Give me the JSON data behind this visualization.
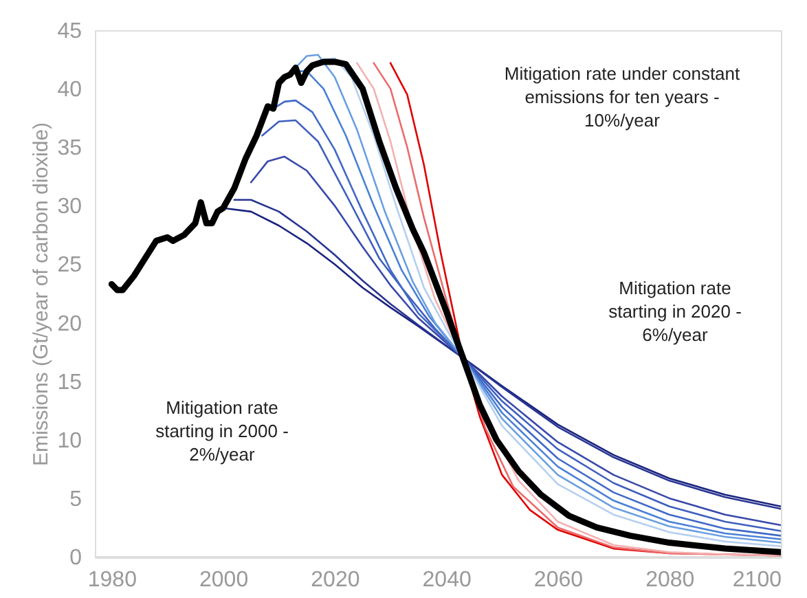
{
  "chart_data": {
    "type": "line",
    "ylabel": "Emissions (Gt/year of carbon dioxide)",
    "xlim": [
      1977,
      2100
    ],
    "ylim": [
      0,
      45
    ],
    "xticks": [
      1980,
      2000,
      2020,
      2040,
      2060,
      2080,
      2100
    ],
    "yticks": [
      0,
      5,
      10,
      15,
      20,
      25,
      30,
      35,
      40,
      45
    ],
    "grid": false,
    "series": [
      {
        "color": "#e00000",
        "x": [
          2030,
          2033,
          2036,
          2039,
          2041,
          2043,
          2046,
          2050,
          2055,
          2060,
          2070,
          2080,
          2100
        ],
        "values": [
          42.2,
          39.5,
          33.5,
          26,
          21.5,
          17,
          12,
          7,
          4,
          2.3,
          0.7,
          0.3,
          0.1
        ]
      },
      {
        "color": "#ec6b6b",
        "x": [
          2027,
          2030,
          2033,
          2036,
          2040,
          2043,
          2047,
          2052,
          2060,
          2070,
          2080,
          2090,
          2100
        ],
        "values": [
          42.2,
          40,
          35,
          29,
          22,
          17,
          11,
          6,
          2.5,
          0.8,
          0.3,
          0.2,
          0.1
        ]
      },
      {
        "color": "#f4b0b0",
        "x": [
          2024,
          2027,
          2030,
          2034,
          2038,
          2043,
          2048,
          2053,
          2060,
          2070,
          2080,
          2090,
          2100
        ],
        "values": [
          42.2,
          40,
          35.5,
          28,
          22,
          17,
          11,
          6.5,
          3,
          1,
          0.4,
          0.2,
          0.1
        ]
      },
      {
        "color": "#1a237e",
        "x": [
          2000,
          2005,
          2010,
          2015,
          2020,
          2025,
          2030,
          2035,
          2043,
          2050,
          2060,
          2070,
          2080,
          2090,
          2100
        ],
        "values": [
          29.8,
          29.5,
          28.3,
          26.8,
          25,
          23,
          21.3,
          19.7,
          17,
          14.6,
          11.3,
          8.7,
          6.7,
          5.3,
          4.3
        ]
      },
      {
        "color": "#283593",
        "x": [
          2002,
          2005,
          2010,
          2015,
          2020,
          2025,
          2030,
          2035,
          2043,
          2050,
          2060,
          2070,
          2080,
          2090,
          2100
        ],
        "values": [
          30.5,
          30.5,
          29.5,
          27.8,
          25.8,
          23.6,
          21.6,
          19.8,
          17,
          14.5,
          11.1,
          8.5,
          6.5,
          5.1,
          4.1
        ]
      },
      {
        "color": "#3949ab",
        "x": [
          2005,
          2008,
          2011,
          2015,
          2020,
          2025,
          2030,
          2035,
          2043,
          2050,
          2060,
          2070,
          2080,
          2090,
          2100
        ],
        "values": [
          32,
          33.8,
          34.2,
          33,
          30,
          26.5,
          23.2,
          20.4,
          17,
          13.7,
          9.8,
          7,
          5,
          3.6,
          2.7
        ]
      },
      {
        "color": "#3f5fbf",
        "x": [
          2007,
          2010,
          2013,
          2017,
          2022,
          2028,
          2032,
          2038,
          2043,
          2050,
          2060,
          2070,
          2080,
          2090,
          2100
        ],
        "values": [
          36,
          37.2,
          37.3,
          35.5,
          31,
          25.5,
          23,
          19.5,
          17,
          13.3,
          9.2,
          6.3,
          4.3,
          3,
          2.2
        ]
      },
      {
        "color": "#4169c8",
        "x": [
          2009,
          2011,
          2013,
          2016,
          2020,
          2025,
          2030,
          2035,
          2043,
          2050,
          2060,
          2070,
          2080,
          2090,
          2100
        ],
        "values": [
          38.3,
          38.9,
          39,
          38,
          34.8,
          29.5,
          24.5,
          20.8,
          17,
          12.8,
          8.4,
          5.5,
          3.6,
          2.4,
          1.8
        ]
      },
      {
        "color": "#4a80d6",
        "x": [
          2011,
          2013,
          2015,
          2018,
          2022,
          2027,
          2032,
          2037,
          2043,
          2050,
          2060,
          2070,
          2080,
          2090,
          2100
        ],
        "values": [
          41,
          41.5,
          41.5,
          40,
          36,
          30,
          24.5,
          20.5,
          17,
          12.3,
          7.7,
          4.8,
          3,
          2,
          1.5
        ]
      },
      {
        "color": "#6a9fe0",
        "x": [
          2013,
          2015,
          2017,
          2020,
          2024,
          2029,
          2034,
          2038,
          2043,
          2050,
          2060,
          2070,
          2080,
          2090,
          2100
        ],
        "values": [
          41.8,
          42.8,
          42.9,
          41,
          36.5,
          29.5,
          23.5,
          20,
          17,
          11.8,
          7,
          4.2,
          2.6,
          1.7,
          1.2
        ]
      },
      {
        "color": "#b5cff0",
        "x": [
          2016,
          2018,
          2020,
          2023,
          2027,
          2031,
          2036,
          2040,
          2043,
          2050,
          2060,
          2070,
          2080,
          2090,
          2100
        ],
        "values": [
          42,
          42.5,
          42.6,
          41,
          36,
          30,
          23,
          19.5,
          17,
          11.2,
          6.2,
          3.6,
          2.1,
          1.3,
          0.9
        ]
      },
      {
        "color": "#000000",
        "x": [
          1980,
          1981,
          1982,
          1984,
          1986,
          1988,
          1990,
          1991,
          1993,
          1995,
          1996,
          1997,
          1998,
          1999,
          2000,
          2002,
          2004,
          2006,
          2008,
          2009,
          2010,
          2011,
          2012,
          2013,
          2014,
          2015,
          2016,
          2018,
          2020,
          2022,
          2025,
          2028,
          2031,
          2034,
          2036,
          2040,
          2043,
          2046,
          2049,
          2053,
          2057,
          2062,
          2067,
          2073,
          2080,
          2090,
          2100
        ],
        "values": [
          23.3,
          22.8,
          22.8,
          24,
          25.5,
          27,
          27.3,
          27,
          27.5,
          28.5,
          30.3,
          28.5,
          28.5,
          29.5,
          29.8,
          31.5,
          34,
          36,
          38.5,
          38.3,
          40.5,
          41,
          41.2,
          41.8,
          40.5,
          41.5,
          42,
          42.3,
          42.3,
          42.1,
          40,
          35.5,
          31.5,
          28,
          26,
          21,
          17,
          13,
          10,
          7.3,
          5.3,
          3.5,
          2.5,
          1.8,
          1.2,
          0.7,
          0.4
        ]
      }
    ],
    "annotations": [
      "Mitigation rate under constant\nemissions for ten years -\n10%/year",
      "Mitigation rate\nstarting in 2020 -\n6%/year",
      "Mitigation rate\nstarting in 2000 -\n2%/year"
    ]
  }
}
